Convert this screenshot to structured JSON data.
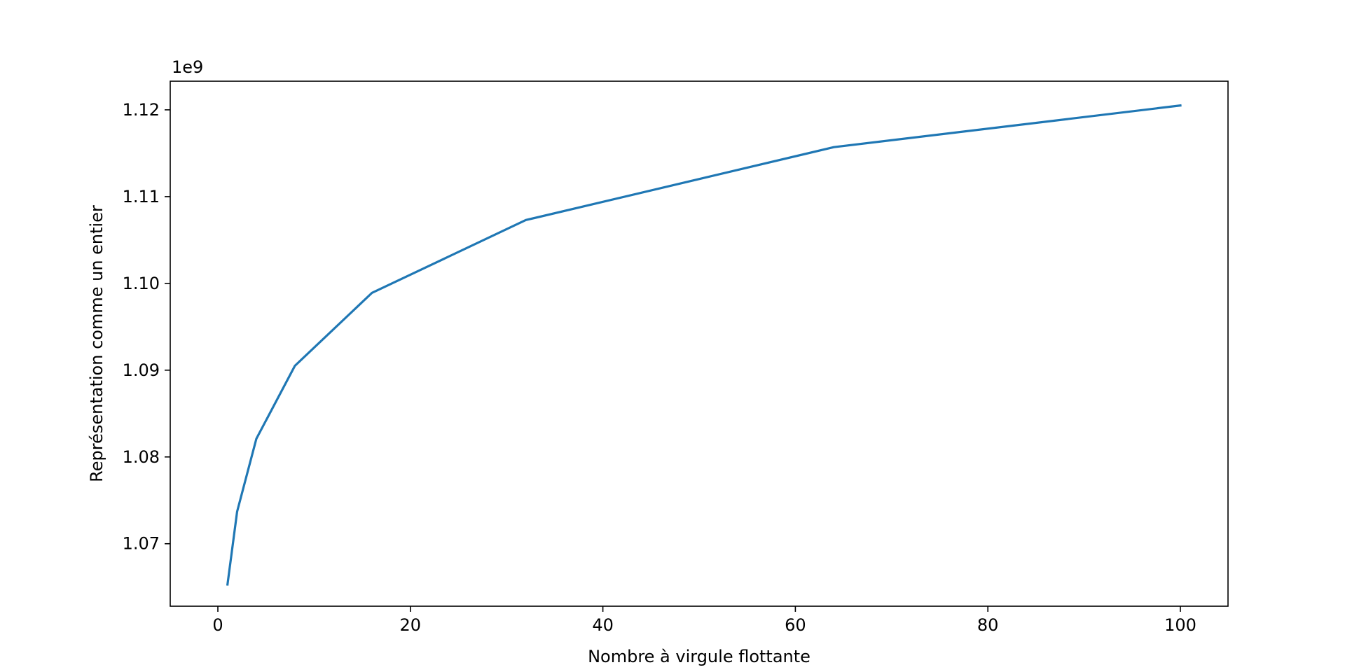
{
  "chart_data": {
    "type": "line",
    "xlabel": "Nombre à virgule flottante",
    "ylabel": "Représentation comme un entier",
    "y_offset_label": "1e9",
    "xlim": [
      -4.95,
      104.95
    ],
    "ylim": [
      1.0628,
      1.1233
    ],
    "x_ticks": [
      0,
      20,
      40,
      60,
      80,
      100
    ],
    "x_tick_labels": [
      "0",
      "20",
      "40",
      "60",
      "80",
      "100"
    ],
    "y_ticks": [
      1.07,
      1.08,
      1.09,
      1.1,
      1.11,
      1.12
    ],
    "y_tick_labels": [
      "1.07",
      "1.08",
      "1.09",
      "1.10",
      "1.11",
      "1.12"
    ],
    "grid": false,
    "series": [
      {
        "color": "#1f77b4",
        "x": [
          1,
          2,
          4,
          8,
          16,
          32,
          64,
          100
        ],
        "y": [
          1.0653,
          1.0737,
          1.0821,
          1.0905,
          1.0989,
          1.1073,
          1.1157,
          1.1205
        ]
      }
    ]
  }
}
